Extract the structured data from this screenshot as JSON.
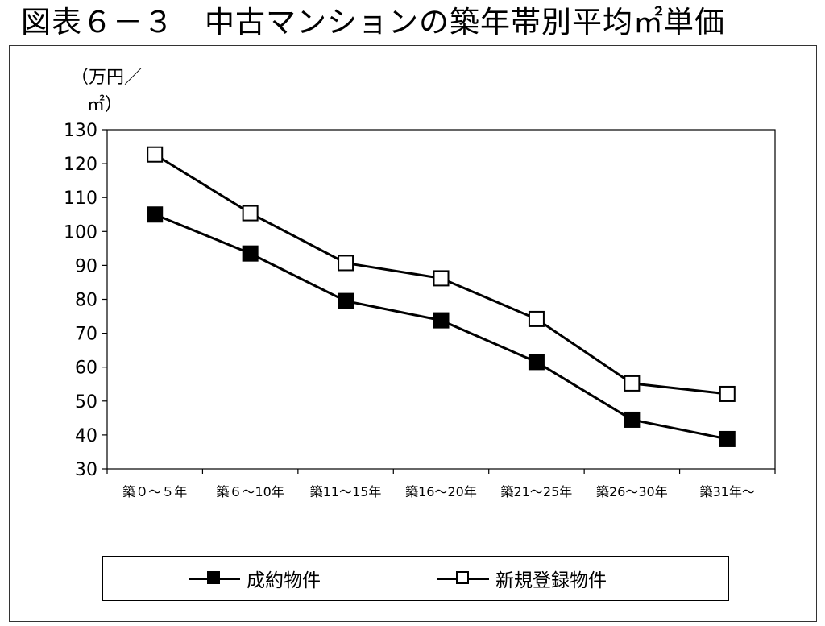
{
  "title": "図表６－３　中古マンションの築年帯別平均㎡単価",
  "chart_data": {
    "type": "line",
    "title": "図表６－３　中古マンションの築年帯別平均㎡単価",
    "ylabel": [
      "（万円／",
      "㎡）"
    ],
    "xlabel": "",
    "ylim": [
      30,
      130
    ],
    "yticks": [
      30,
      40,
      50,
      60,
      70,
      80,
      90,
      100,
      110,
      120,
      130
    ],
    "categories": [
      "築０～５年",
      "築６～10年",
      "築11～15年",
      "築16～20年",
      "築21～25年",
      "築26～30年",
      "築31年～"
    ],
    "series": [
      {
        "name": "成約物件",
        "values": [
          105,
          93.5,
          79.5,
          73.8,
          61.5,
          44.5,
          38.8
        ],
        "marker": "filled-square",
        "color": "#000000"
      },
      {
        "name": "新規登録物件",
        "values": [
          122.7,
          105.4,
          90.7,
          86.2,
          74.2,
          55.2,
          52.1
        ],
        "marker": "open-square",
        "color": "#000000"
      }
    ],
    "grid": false,
    "legend_position": "bottom"
  }
}
